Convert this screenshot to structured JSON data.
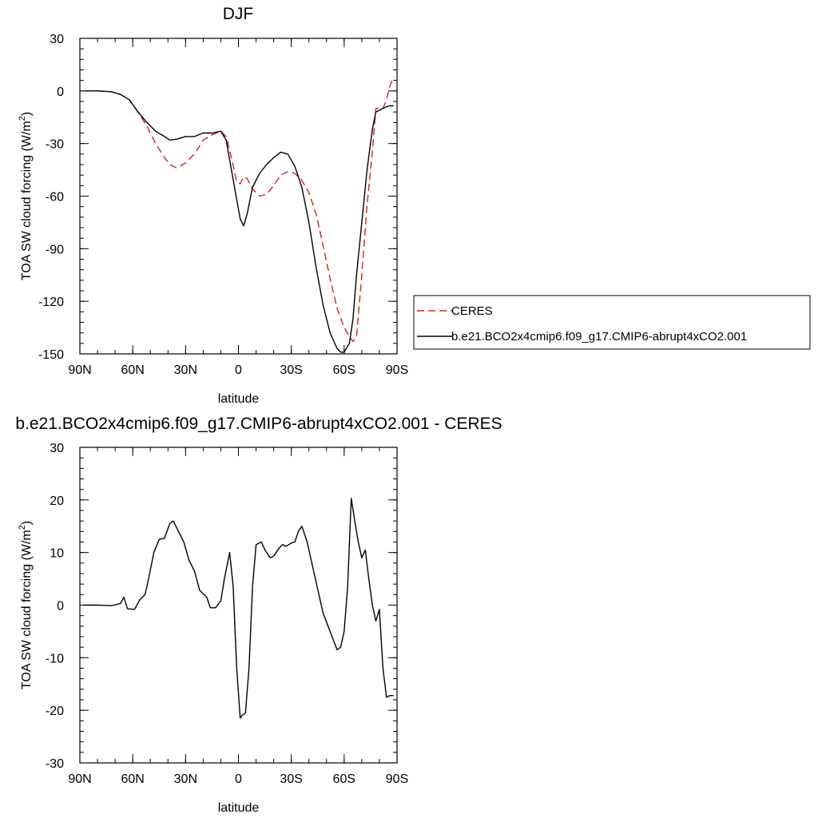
{
  "chart_data": [
    {
      "type": "line",
      "title": "DJF",
      "xlabel": "latitude",
      "ylabel_main": "TOA SW cloud forcing (W/m",
      "ylabel_sup": "2",
      "ylabel_close": ")",
      "xlim": [
        90,
        -90
      ],
      "ylim": [
        -150,
        30
      ],
      "x_ticks": [
        {
          "value": 90,
          "label": "90N"
        },
        {
          "value": 60,
          "label": "60N"
        },
        {
          "value": 30,
          "label": "30N"
        },
        {
          "value": 0,
          "label": "0"
        },
        {
          "value": -30,
          "label": "30S"
        },
        {
          "value": -60,
          "label": "60S"
        },
        {
          "value": -90,
          "label": "90S"
        }
      ],
      "y_ticks": [
        {
          "value": 30,
          "label": "30"
        },
        {
          "value": 0,
          "label": "0"
        },
        {
          "value": -30,
          "label": "-30"
        },
        {
          "value": -60,
          "label": "-60"
        },
        {
          "value": -90,
          "label": "-90"
        },
        {
          "value": -120,
          "label": "-120"
        },
        {
          "value": -150,
          "label": "-150"
        }
      ],
      "grid": false,
      "legend_position": "right",
      "series": [
        {
          "name": "CERES",
          "color": "#e31a1c",
          "dash": "dashed",
          "x": [
            87,
            80,
            72,
            67,
            62,
            57,
            52,
            47,
            42,
            39,
            35,
            30,
            25,
            20,
            15,
            10,
            7,
            4,
            1,
            -1,
            -3,
            -5,
            -8,
            -12,
            -16,
            -20,
            -24,
            -28,
            -32,
            -36,
            -40,
            -44,
            -48,
            -52,
            -56,
            -60,
            -63,
            -65,
            -67,
            -70,
            -73,
            -76,
            -78,
            -80,
            -82,
            -84,
            -86,
            -88
          ],
          "y": [
            0,
            0,
            -0.5,
            -2,
            -5,
            -12,
            -20,
            -30,
            -38,
            -42,
            -44,
            -41,
            -36,
            -28,
            -25,
            -23,
            -26,
            -38,
            -52,
            -53,
            -49,
            -50,
            -56,
            -60,
            -59,
            -54,
            -48,
            -46,
            -47,
            -51,
            -58,
            -70,
            -88,
            -107,
            -124,
            -135,
            -140,
            -143,
            -140,
            -105,
            -65,
            -35,
            -10,
            -10,
            -10,
            -5,
            3,
            8
          ]
        },
        {
          "name": "b.e21.BCO2x4cmip6.f09_g17.CMIP6-abrupt4xCO2.001",
          "color": "#000000",
          "dash": "solid",
          "x": [
            87,
            80,
            72,
            67,
            62,
            57,
            52,
            47,
            42,
            39,
            35,
            30,
            25,
            20,
            15,
            10,
            7,
            4,
            1,
            -1,
            -3,
            -5,
            -8,
            -12,
            -16,
            -20,
            -24,
            -28,
            -32,
            -36,
            -40,
            -44,
            -48,
            -52,
            -56,
            -58,
            -60,
            -63,
            -65,
            -67,
            -70,
            -73,
            -76,
            -78,
            -80,
            -82,
            -84,
            -86,
            -88
          ],
          "y": [
            0,
            0,
            -0.5,
            -2,
            -5,
            -12,
            -18,
            -23,
            -26,
            -28,
            -27.5,
            -26,
            -26,
            -24,
            -24,
            -23,
            -28,
            -45,
            -62,
            -73,
            -77,
            -70,
            -55,
            -47,
            -42,
            -38,
            -35,
            -36,
            -43,
            -55,
            -75,
            -100,
            -122,
            -138,
            -147,
            -149,
            -149,
            -144,
            -130,
            -105,
            -75,
            -45,
            -22,
            -12,
            -11,
            -10,
            -9,
            -8.5,
            -8.5
          ]
        }
      ]
    },
    {
      "type": "line",
      "title": "b.e21.BCO2x4cmip6.f09_g17.CMIP6-abrupt4xCO2.001 - CERES",
      "xlabel": "latitude",
      "ylabel_main": "TOA SW cloud forcing (W/m",
      "ylabel_sup": "2",
      "ylabel_close": ")",
      "xlim": [
        90,
        -90
      ],
      "ylim": [
        -30,
        30
      ],
      "x_ticks": [
        {
          "value": 90,
          "label": "90N"
        },
        {
          "value": 60,
          "label": "60N"
        },
        {
          "value": 30,
          "label": "30N"
        },
        {
          "value": 0,
          "label": "0"
        },
        {
          "value": -30,
          "label": "30S"
        },
        {
          "value": -60,
          "label": "60S"
        },
        {
          "value": -90,
          "label": "90S"
        }
      ],
      "y_ticks": [
        {
          "value": 30,
          "label": "30"
        },
        {
          "value": 20,
          "label": "20"
        },
        {
          "value": 10,
          "label": "10"
        },
        {
          "value": 0,
          "label": "0"
        },
        {
          "value": -10,
          "label": "-10"
        },
        {
          "value": -20,
          "label": "-20"
        },
        {
          "value": -30,
          "label": "-30"
        }
      ],
      "grid": false,
      "series": [
        {
          "name": "",
          "color": "#000000",
          "dash": "solid",
          "x": [
            88,
            80,
            72,
            67,
            65,
            63,
            59,
            56,
            53,
            51,
            48,
            45,
            42,
            39,
            37,
            34,
            31,
            28,
            25,
            22,
            18,
            16,
            13,
            10,
            8,
            5,
            3,
            1,
            -1,
            -2,
            -4,
            -6,
            -8,
            -10,
            -13,
            -15,
            -18,
            -20,
            -23,
            -25,
            -27,
            -30,
            -32,
            -34,
            -36,
            -39,
            -42,
            -48,
            -52,
            -56,
            -58,
            -60,
            -62,
            -64,
            -66,
            -68,
            -70,
            -72,
            -74,
            -76,
            -78,
            -80,
            -82,
            -84,
            -86,
            -88
          ],
          "y": [
            0,
            0,
            -0.1,
            0.3,
            1.5,
            -0.7,
            -0.8,
            1,
            2,
            5,
            10,
            12.5,
            12.7,
            15.5,
            16,
            14,
            12,
            8.5,
            6.5,
            2.8,
            1.5,
            -0.5,
            -0.5,
            0.8,
            5,
            10,
            3.5,
            -12,
            -21.5,
            -21,
            -20.5,
            -12,
            3.5,
            11.5,
            12,
            10.5,
            9,
            9.3,
            10.8,
            11.5,
            11.2,
            11.8,
            12,
            14,
            15,
            12,
            7.5,
            -1.5,
            -5,
            -8.5,
            -8,
            -5,
            3.5,
            20.3,
            16,
            12,
            9,
            10.5,
            5,
            0,
            -3,
            -0.8,
            -12,
            -17.5,
            -17.2,
            -17.2
          ]
        }
      ]
    }
  ]
}
